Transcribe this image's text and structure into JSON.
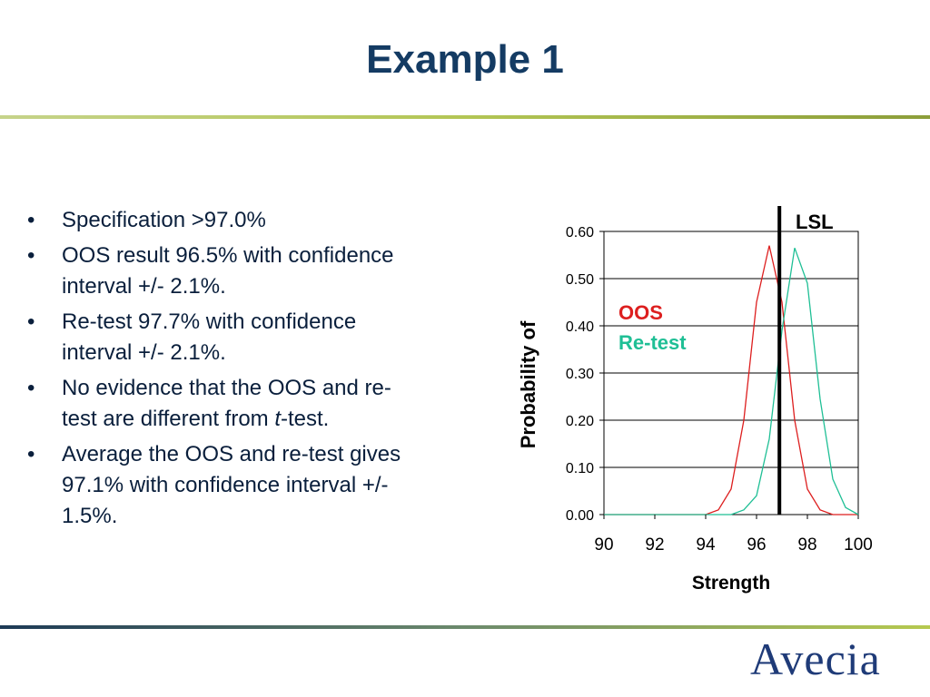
{
  "slide": {
    "title": "Example 1",
    "bullets": [
      {
        "text": "Specification >97.0%"
      },
      {
        "text": "OOS result 96.5% with confidence interval +/- 2.1%."
      },
      {
        "text": "Re-test 97.7% with confidence interval +/- 2.1%."
      },
      {
        "pre": "No evidence that the OOS and re-test are different from ",
        "italic": "t",
        "post": "-test."
      },
      {
        "text": "Average the OOS and re-test gives 97.1% with confidence interval +/- 1.5%."
      }
    ],
    "bullet_glyph": "•",
    "logo": "Avecia"
  },
  "chart_data": {
    "type": "line",
    "title": "",
    "xlabel": "Strength",
    "ylabel": "Probability of",
    "xlim": [
      90,
      100
    ],
    "ylim": [
      0,
      0.6
    ],
    "x_ticks": [
      "90",
      "92",
      "94",
      "96",
      "98",
      "100"
    ],
    "y_ticks": [
      "0.00",
      "0.10",
      "0.20",
      "0.30",
      "0.40",
      "0.50",
      "0.60"
    ],
    "grid": true,
    "legend_placement": "top-left",
    "x": [
      90,
      90.5,
      91,
      91.5,
      92,
      92.5,
      93,
      93.5,
      94,
      94.5,
      95,
      95.5,
      96,
      96.5,
      97,
      97.5,
      98,
      98.5,
      99,
      99.5,
      100
    ],
    "series": [
      {
        "name": "OOS",
        "color": "#dd1f1f",
        "values": [
          0,
          0,
          0,
          0,
          0,
          0,
          0,
          0,
          0,
          0.01,
          0.054,
          0.2,
          0.45,
          0.57,
          0.45,
          0.2,
          0.054,
          0.01,
          0,
          0,
          0
        ]
      },
      {
        "name": "Re-test",
        "color": "#1fbf95",
        "values": [
          0,
          0,
          0,
          0,
          0,
          0,
          0,
          0,
          0,
          0,
          0,
          0.01,
          0.04,
          0.16,
          0.39,
          0.565,
          0.49,
          0.245,
          0.075,
          0.015,
          0
        ]
      }
    ],
    "reference_line": {
      "label": "LSL",
      "x": 96.9,
      "color": "#000000"
    }
  }
}
